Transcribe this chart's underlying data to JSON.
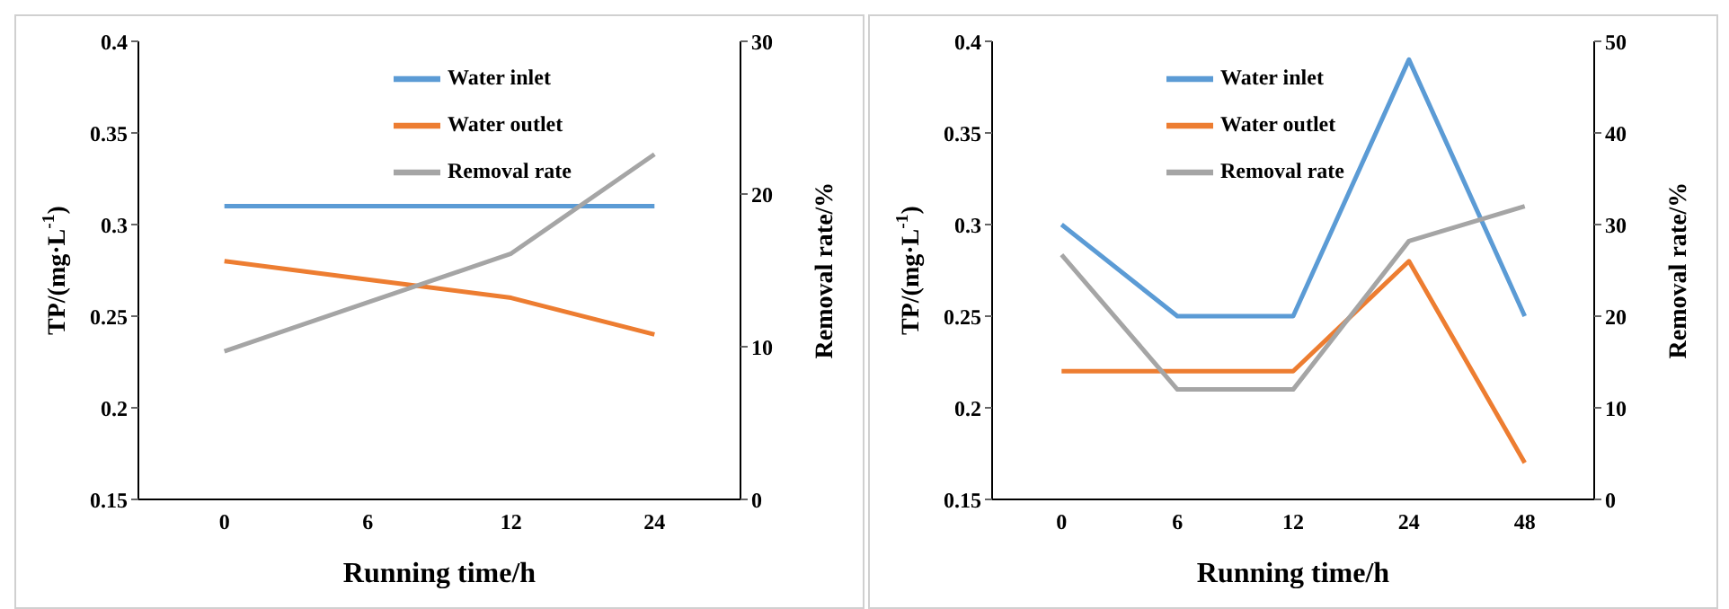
{
  "chart_data": [
    {
      "type": "line",
      "categories": [
        "0",
        "6",
        "12",
        "24"
      ],
      "xlabel": "Running time/h",
      "ylabel": "TP/(mg·L$^{-1}$)",
      "y2label": "Removal rate/%",
      "ylim": [
        0.15,
        0.4
      ],
      "yticks": [
        0.15,
        0.2,
        0.25,
        0.3,
        0.35,
        0.4
      ],
      "y2lim": [
        0,
        30
      ],
      "y2ticks": [
        0,
        10,
        20,
        30
      ],
      "legend": "top",
      "grid": false,
      "marker": "none",
      "series": [
        {
          "name": "Water inlet",
          "color": "#5b9bd5",
          "values": [
            0.31,
            0.31,
            0.31,
            0.31
          ]
        },
        {
          "name": "Water outlet",
          "color": "#ed7d31",
          "values": [
            0.28,
            0.27,
            0.26,
            0.24
          ]
        },
        {
          "name": "Removal rate",
          "color": "#a5a5a5",
          "axis": "y2",
          "values": [
            9.7,
            12.9,
            16.1,
            22.6
          ]
        }
      ]
    },
    {
      "type": "line",
      "categories": [
        "0",
        "6",
        "12",
        "24",
        "48"
      ],
      "xlabel": "Running time/h",
      "ylabel": "TP/(mg·L$^{-1}$)",
      "y2label": "Removal rate/%",
      "ylim": [
        0.15,
        0.4
      ],
      "yticks": [
        0.15,
        0.2,
        0.25,
        0.3,
        0.35,
        0.4
      ],
      "y2lim": [
        0,
        50
      ],
      "y2ticks": [
        0,
        10,
        20,
        30,
        40,
        50
      ],
      "legend": "top",
      "grid": false,
      "marker": "none",
      "series": [
        {
          "name": "Water inlet",
          "color": "#5b9bd5",
          "values": [
            0.3,
            0.25,
            0.25,
            0.39,
            0.25
          ]
        },
        {
          "name": "Water outlet",
          "color": "#ed7d31",
          "values": [
            0.22,
            0.22,
            0.22,
            0.28,
            0.17
          ]
        },
        {
          "name": "Removal rate",
          "color": "#a5a5a5",
          "axis": "y2",
          "values": [
            26.7,
            12,
            12,
            28.2,
            32
          ]
        }
      ]
    }
  ]
}
